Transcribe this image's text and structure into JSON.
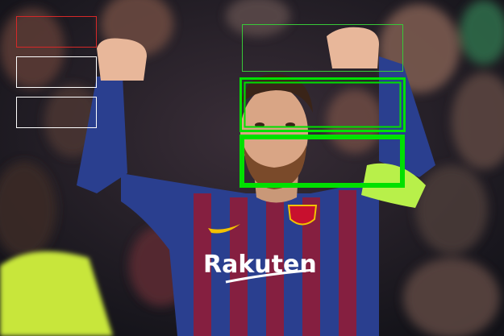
{
  "photo": {
    "subject": "celebrating-footballer",
    "kit_colors": {
      "blue": "#2a3f8f",
      "garnet": "#8a1e3c",
      "captain_armband": "#b8f04a"
    },
    "sponsor_text": "Rakuten"
  },
  "overlay_boxes": [
    {
      "id": "left-red-box",
      "color": "#d62828",
      "style": "thin"
    },
    {
      "id": "left-white-box-1",
      "color": "#ffffff",
      "style": "thin"
    },
    {
      "id": "left-white-box-2",
      "color": "#ffffff",
      "style": "thin"
    },
    {
      "id": "fists-green-box",
      "color": "#38c838",
      "style": "thin"
    },
    {
      "id": "eyes-green-box",
      "color": "#00e000",
      "style": "double"
    },
    {
      "id": "mouth-green-box",
      "color": "#00e000",
      "style": "thick"
    }
  ]
}
